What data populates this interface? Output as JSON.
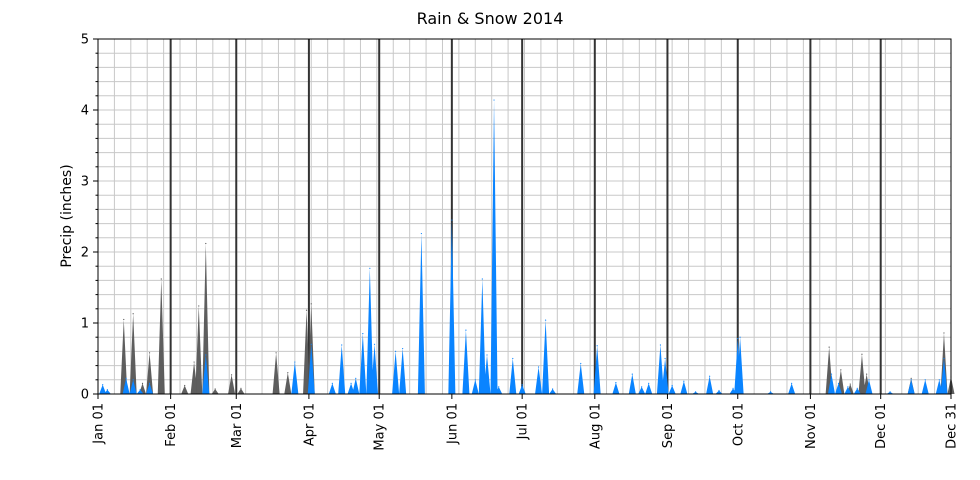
{
  "chart_data": {
    "type": "area",
    "title": "Rain & Snow 2014",
    "xlabel": "",
    "ylabel": "Precip (inches)",
    "year": 2014,
    "ylim": [
      0,
      5
    ],
    "xlim": [
      "2014-01-01",
      "2014-12-31"
    ],
    "y_ticks": [
      "0",
      "1",
      "2",
      "3",
      "4",
      "5"
    ],
    "x_ticks": [
      "Jan 01",
      "Feb 01",
      "Mar 01",
      "Apr 01",
      "May 01",
      "Jun 01",
      "Jul 01",
      "Aug 01",
      "Sep 01",
      "Oct 01",
      "Nov 01",
      "Dec 01",
      "Dec 31"
    ],
    "grid": true,
    "colors": {
      "snow": "#555555",
      "rain": "#0a84ff",
      "month_line": "#333333",
      "grid": "#c8c8c8"
    },
    "series": [
      {
        "values": [
          [
            "2014-01-12",
            1.05
          ],
          [
            "2014-01-16",
            1.13
          ],
          [
            "2014-01-20",
            0.15
          ],
          [
            "2014-01-23",
            0.58
          ],
          [
            "2014-01-28",
            1.62
          ],
          [
            "2014-02-07",
            0.12
          ],
          [
            "2014-02-11",
            0.45
          ],
          [
            "2014-02-13",
            1.24
          ],
          [
            "2014-02-16",
            2.12
          ],
          [
            "2014-02-20",
            0.07
          ],
          [
            "2014-02-27",
            0.27
          ],
          [
            "2014-03-03",
            0.08
          ],
          [
            "2014-03-18",
            0.58
          ],
          [
            "2014-03-23",
            0.3
          ],
          [
            "2014-03-31",
            1.18
          ],
          [
            "2014-04-02",
            1.27
          ],
          [
            "2014-11-09",
            0.66
          ],
          [
            "2014-11-14",
            0.34
          ],
          [
            "2014-11-18",
            0.14
          ],
          [
            "2014-11-23",
            0.56
          ],
          [
            "2014-11-25",
            0.28
          ],
          [
            "2014-12-14",
            0.22
          ],
          [
            "2014-12-28",
            0.86
          ],
          [
            "2014-12-31",
            0.24
          ]
        ]
      },
      {
        "values": [
          [
            "2014-01-03",
            0.13
          ],
          [
            "2014-01-05",
            0.06
          ],
          [
            "2014-01-13",
            0.22
          ],
          [
            "2014-01-16",
            0.2
          ],
          [
            "2014-01-19",
            0.06
          ],
          [
            "2014-01-23",
            0.15
          ],
          [
            "2014-02-16",
            0.55
          ],
          [
            "2014-03-26",
            0.45
          ],
          [
            "2014-04-02",
            0.7
          ],
          [
            "2014-04-11",
            0.15
          ],
          [
            "2014-04-15",
            0.69
          ],
          [
            "2014-04-19",
            0.15
          ],
          [
            "2014-04-21",
            0.22
          ],
          [
            "2014-04-24",
            0.85
          ],
          [
            "2014-04-27",
            1.77
          ],
          [
            "2014-04-29",
            0.7
          ],
          [
            "2014-05-08",
            0.6
          ],
          [
            "2014-05-11",
            0.64
          ],
          [
            "2014-05-19",
            2.26
          ],
          [
            "2014-06-01",
            2.45
          ],
          [
            "2014-06-07",
            0.9
          ],
          [
            "2014-06-11",
            0.2
          ],
          [
            "2014-06-14",
            1.62
          ],
          [
            "2014-06-16",
            0.55
          ],
          [
            "2014-06-19",
            4.14
          ],
          [
            "2014-06-21",
            0.1
          ],
          [
            "2014-06-27",
            0.5
          ],
          [
            "2014-07-01",
            0.13
          ],
          [
            "2014-07-08",
            0.38
          ],
          [
            "2014-07-11",
            1.04
          ],
          [
            "2014-07-14",
            0.07
          ],
          [
            "2014-07-26",
            0.43
          ],
          [
            "2014-08-02",
            0.68
          ],
          [
            "2014-08-10",
            0.16
          ],
          [
            "2014-08-17",
            0.28
          ],
          [
            "2014-08-21",
            0.1
          ],
          [
            "2014-08-24",
            0.15
          ],
          [
            "2014-08-29",
            0.69
          ],
          [
            "2014-08-31",
            0.5
          ],
          [
            "2014-09-03",
            0.12
          ],
          [
            "2014-09-08",
            0.18
          ],
          [
            "2014-09-13",
            0.03
          ],
          [
            "2014-09-19",
            0.25
          ],
          [
            "2014-09-23",
            0.05
          ],
          [
            "2014-09-29",
            0.08
          ],
          [
            "2014-10-01",
            0.78
          ],
          [
            "2014-10-02",
            0.8
          ],
          [
            "2014-10-15",
            0.03
          ],
          [
            "2014-10-24",
            0.15
          ],
          [
            "2014-11-10",
            0.28
          ],
          [
            "2014-11-13",
            0.15
          ],
          [
            "2014-11-17",
            0.1
          ],
          [
            "2014-11-21",
            0.08
          ],
          [
            "2014-11-26",
            0.2
          ],
          [
            "2014-12-05",
            0.03
          ],
          [
            "2014-12-14",
            0.2
          ],
          [
            "2014-12-20",
            0.2
          ],
          [
            "2014-12-26",
            0.2
          ],
          [
            "2014-12-28",
            0.5
          ]
        ]
      }
    ]
  }
}
